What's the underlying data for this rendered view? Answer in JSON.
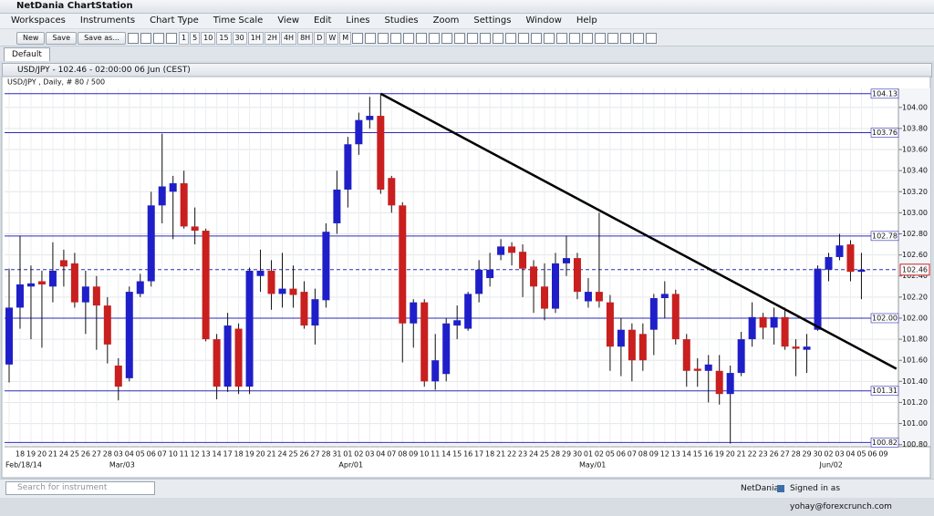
{
  "app_title": "NetDania ChartStation",
  "menu": [
    "Workspaces",
    "Instruments",
    "Chart Type",
    "Time Scale",
    "View",
    "Edit",
    "Lines",
    "Studies",
    "Zoom",
    "Settings",
    "Window",
    "Help"
  ],
  "toolbar": {
    "buttons": [
      "New",
      "Save",
      "Save as..."
    ],
    "periods": [
      "1",
      "5",
      "10",
      "15",
      "30",
      "1H",
      "2H",
      "4H",
      "8H",
      "D",
      "W",
      "M"
    ]
  },
  "tab": "Default",
  "window_title": "USD/JPY - 102.46 - 02:00:00 06 Jun (CEST)",
  "chart_data": {
    "type": "candlestick",
    "title": "USD/JPY , Daily, # 80 / 500",
    "categories": [
      "18",
      "19",
      "20",
      "21",
      "24",
      "25",
      "26",
      "27",
      "28",
      "03",
      "04",
      "05",
      "06",
      "07",
      "10",
      "11",
      "12",
      "13",
      "14",
      "17",
      "18",
      "19",
      "20",
      "21",
      "24",
      "25",
      "26",
      "27",
      "28",
      "31",
      "01",
      "02",
      "03",
      "04",
      "07",
      "08",
      "09",
      "10",
      "11",
      "14",
      "15",
      "16",
      "17",
      "18",
      "21",
      "22",
      "23",
      "24",
      "25",
      "28",
      "29",
      "30",
      "01",
      "02",
      "05",
      "06",
      "07",
      "08",
      "09",
      "12",
      "13",
      "14",
      "15",
      "16",
      "19",
      "20",
      "21",
      "22",
      "23",
      "26",
      "27",
      "28",
      "29",
      "30",
      "02",
      "03",
      "04",
      "05",
      "06",
      "09"
    ],
    "month_labels": [
      "Feb/18/14",
      "Mar/03",
      "Apr/01",
      "May/01",
      "Jun/02"
    ],
    "open": [
      101.56,
      102.1,
      102.3,
      102.35,
      102.3,
      102.55,
      102.52,
      102.15,
      102.3,
      102.12,
      101.55,
      101.43,
      102.23,
      102.35,
      103.07,
      103.2,
      103.28,
      102.87,
      102.83,
      101.8,
      101.35,
      101.9,
      101.35,
      102.4,
      102.45,
      102.23,
      102.28,
      102.25,
      101.93,
      102.17,
      102.9,
      103.22,
      103.65,
      103.88,
      103.92,
      103.33,
      103.07,
      101.95,
      102.15,
      101.4,
      101.47,
      101.93,
      101.9,
      102.23,
      102.38,
      102.6,
      102.68,
      102.63,
      102.49,
      102.3,
      102.09,
      102.52,
      102.57,
      102.16,
      102.25,
      102.15,
      101.73,
      101.89,
      101.85,
      101.89,
      102.19,
      102.23,
      101.8,
      101.52,
      101.5,
      101.5,
      101.28,
      101.48,
      101.8,
      102.01,
      101.91,
      102.01,
      101.73,
      101.7,
      101.89,
      102.46,
      102.58,
      102.7,
      102.44,
      null
    ],
    "high": [
      102.47,
      102.78,
      102.5,
      102.45,
      102.72,
      102.65,
      102.62,
      102.45,
      102.4,
      102.2,
      101.62,
      102.3,
      102.42,
      103.2,
      103.75,
      103.35,
      103.4,
      103.05,
      102.85,
      101.85,
      102.05,
      101.95,
      102.48,
      102.65,
      102.55,
      102.62,
      102.5,
      102.35,
      102.28,
      102.9,
      103.4,
      103.72,
      103.95,
      104.1,
      104.12,
      103.35,
      103.1,
      102.18,
      102.18,
      101.85,
      102.0,
      102.12,
      102.25,
      102.55,
      102.62,
      102.75,
      102.72,
      102.7,
      102.55,
      102.52,
      102.62,
      102.78,
      102.62,
      102.38,
      103.0,
      102.22,
      102.0,
      101.95,
      101.95,
      102.23,
      102.35,
      102.27,
      101.85,
      101.62,
      101.65,
      101.65,
      101.55,
      101.87,
      102.15,
      102.05,
      102.1,
      102.1,
      101.8,
      101.85,
      102.5,
      102.62,
      102.8,
      102.74,
      102.62,
      null
    ],
    "low": [
      101.39,
      101.9,
      101.8,
      101.72,
      102.15,
      102.3,
      102.1,
      101.85,
      101.7,
      101.57,
      101.22,
      101.4,
      102.2,
      102.3,
      102.9,
      102.75,
      102.85,
      102.7,
      101.78,
      101.23,
      101.3,
      101.28,
      101.28,
      102.25,
      102.08,
      102.1,
      102.1,
      101.9,
      101.75,
      102.1,
      102.8,
      103.05,
      103.55,
      103.8,
      103.18,
      103.0,
      101.58,
      101.72,
      101.35,
      101.32,
      101.4,
      101.8,
      101.88,
      102.15,
      102.3,
      102.55,
      102.5,
      102.2,
      102.05,
      101.98,
      102.05,
      102.4,
      102.18,
      102.1,
      102.1,
      101.5,
      101.45,
      101.4,
      101.5,
      101.65,
      102.0,
      101.75,
      101.35,
      101.35,
      101.2,
      101.18,
      100.81,
      101.45,
      101.73,
      101.8,
      101.75,
      101.7,
      101.45,
      101.48,
      101.88,
      102.35,
      102.55,
      102.35,
      102.18,
      null
    ],
    "close": [
      102.1,
      102.32,
      102.33,
      102.32,
      102.45,
      102.49,
      102.15,
      102.3,
      102.12,
      101.75,
      101.35,
      102.25,
      102.35,
      103.07,
      103.25,
      103.28,
      102.87,
      102.83,
      101.8,
      101.35,
      101.93,
      101.35,
      102.45,
      102.45,
      102.23,
      102.28,
      102.22,
      101.93,
      102.18,
      102.82,
      103.22,
      103.65,
      103.88,
      103.92,
      103.22,
      103.07,
      101.95,
      102.15,
      101.4,
      101.6,
      101.95,
      101.98,
      102.23,
      102.46,
      102.46,
      102.68,
      102.62,
      102.47,
      102.3,
      102.09,
      102.52,
      102.57,
      102.25,
      102.25,
      102.16,
      101.73,
      101.89,
      101.6,
      101.6,
      102.19,
      102.23,
      101.8,
      101.5,
      101.5,
      101.56,
      101.28,
      101.48,
      101.8,
      102.01,
      101.91,
      102.01,
      101.73,
      101.71,
      101.73,
      102.47,
      102.58,
      102.69,
      102.44,
      102.46,
      null
    ],
    "up_color": "#1f1fc9",
    "down_color": "#c91f1f",
    "levels": [
      104.13,
      103.76,
      102.78,
      {
        "value": 102,
        "label": "102.00"
      },
      101.31,
      100.82
    ],
    "level_color": "#2b2bb8",
    "last_price": 102.46,
    "trendline": {
      "x": [
        34,
        81.2
      ],
      "y": [
        104.13,
        101.52
      ]
    },
    "ylim": [
      100.78,
      104.18
    ],
    "yticks": [
      {
        "value": 100.8,
        "label": "100.80"
      },
      {
        "value": 101,
        "label": "101.00"
      },
      {
        "value": 101.2,
        "label": "101.20"
      },
      {
        "value": 101.4,
        "label": "101.40"
      },
      {
        "value": 101.6,
        "label": "101.60"
      },
      {
        "value": 101.8,
        "label": "101.80"
      },
      {
        "value": 102,
        "label": "102.00"
      },
      {
        "value": 102.2,
        "label": "102.20"
      },
      {
        "value": 102.4,
        "label": "102.40"
      },
      {
        "value": 102.6,
        "label": "102.60"
      },
      {
        "value": 102.8,
        "label": "102.80"
      },
      {
        "value": 103,
        "label": "103.00"
      },
      {
        "value": 103.2,
        "label": "103.20"
      },
      {
        "value": 103.4,
        "label": "103.40"
      },
      {
        "value": 103.6,
        "label": "103.60"
      },
      {
        "value": 103.8,
        "label": "103.80"
      },
      {
        "value": 104,
        "label": "104.00"
      }
    ],
    "grid": true
  },
  "status": {
    "search_placeholder": "Search for instrument",
    "brand": "NetDania",
    "signed_in": "Signed in as yohay@forexcrunch.com"
  }
}
